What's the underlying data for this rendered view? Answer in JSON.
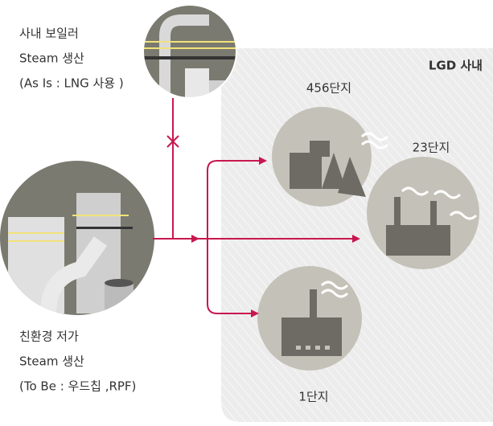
{
  "top_source": {
    "lines": [
      "사내 보일러",
      "Steam 생산",
      "(As Is  : LNG 사용 )"
    ]
  },
  "bottom_source": {
    "lines": [
      "친환경 저가",
      "Steam 생산",
      "(To Be : 우드칩 ,RPF)"
    ]
  },
  "area": {
    "label": "LGD 사내"
  },
  "nodes": [
    {
      "label": "456단지"
    },
    {
      "label": "23단지"
    },
    {
      "label": "1단지"
    }
  ]
}
